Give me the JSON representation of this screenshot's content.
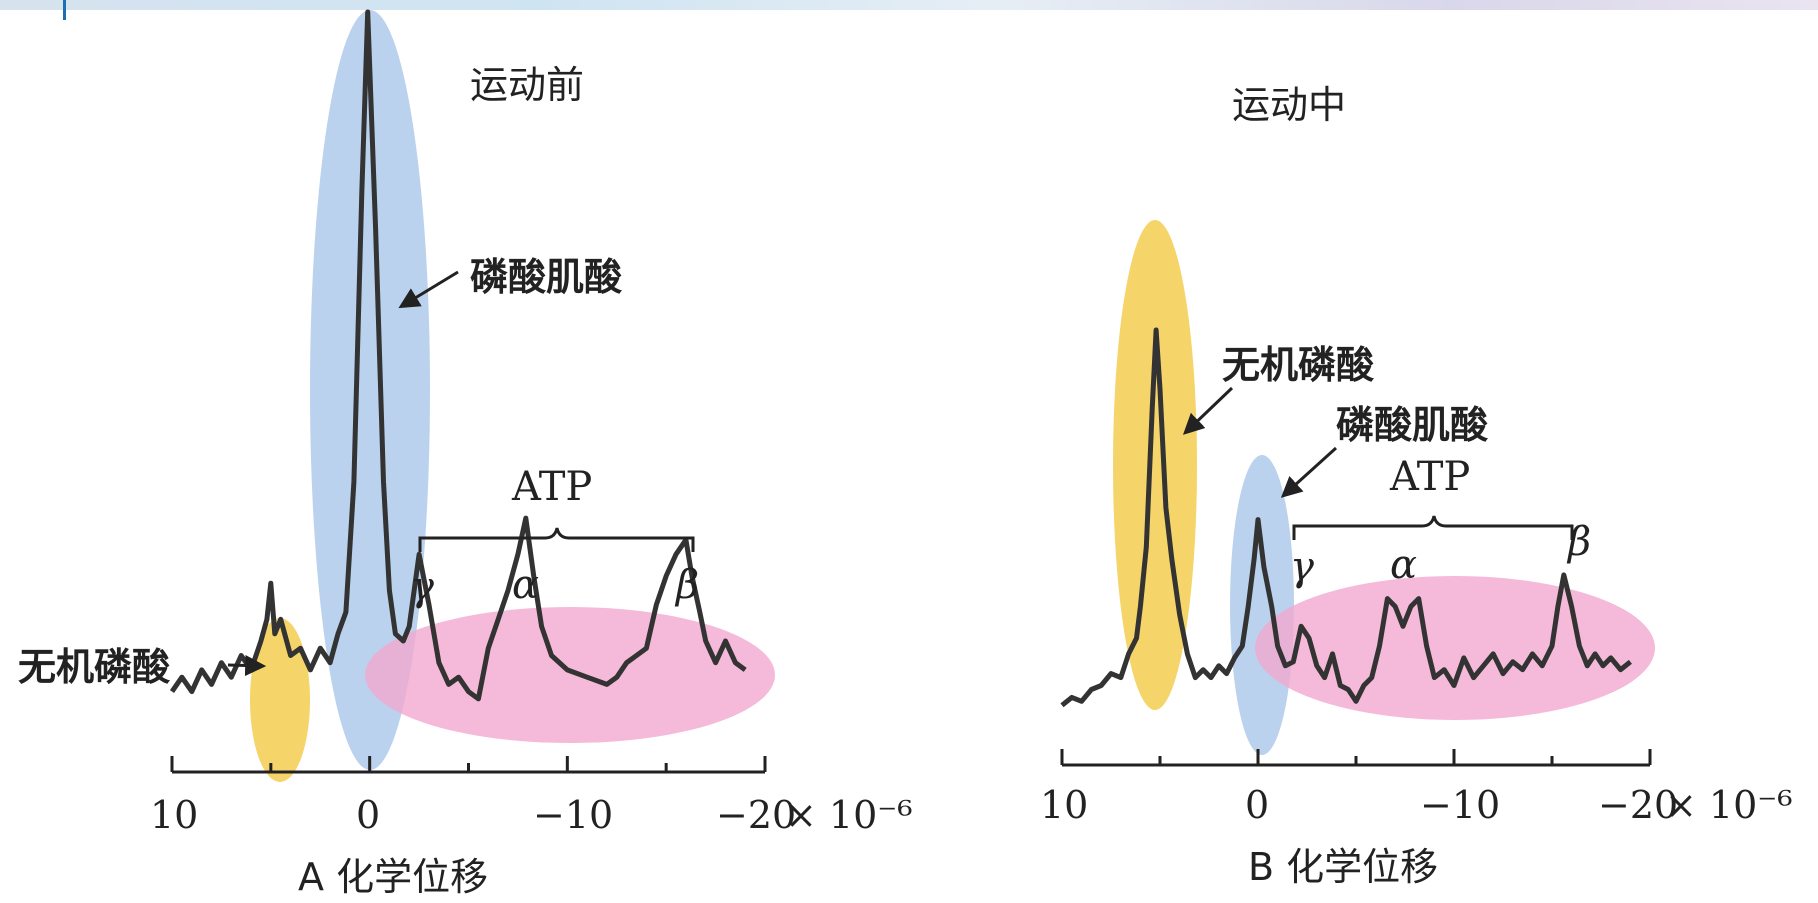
{
  "chart_data": [
    {
      "type": "line",
      "panel": "A",
      "title": "运动前",
      "xlabel": "A 化学位移",
      "x_ticks": [
        "10",
        "0",
        "−10",
        "−20"
      ],
      "x_unit": "× 10⁻⁶",
      "xlim": [
        10,
        -20
      ],
      "x_reversed": true,
      "peak_labels": {
        "inorganic_phosphate": "无机磷酸",
        "phosphocreatine": "磷酸肌酸",
        "atp": "ATP",
        "gamma": "γ",
        "alpha": "α",
        "beta": "β"
      },
      "highlight_colors": {
        "pi": "#f3cd4f",
        "pcr": "#a9c7e8",
        "atp": "#f2a9d0"
      },
      "series": [
        {
          "values": [
            [
              10.0,
              0.06
            ],
            [
              9.5,
              0.08
            ],
            [
              9.0,
              0.06
            ],
            [
              8.5,
              0.09
            ],
            [
              8.0,
              0.07
            ],
            [
              7.5,
              0.1
            ],
            [
              7.0,
              0.08
            ],
            [
              6.5,
              0.11
            ],
            [
              6.0,
              0.09
            ],
            [
              5.5,
              0.13
            ],
            [
              5.2,
              0.16
            ],
            [
              5.0,
              0.21
            ],
            [
              4.8,
              0.14
            ],
            [
              4.5,
              0.16
            ],
            [
              4.0,
              0.11
            ],
            [
              3.5,
              0.12
            ],
            [
              3.0,
              0.09
            ],
            [
              2.5,
              0.12
            ],
            [
              2.0,
              0.1
            ],
            [
              1.6,
              0.14
            ],
            [
              1.2,
              0.17
            ],
            [
              0.8,
              0.35
            ],
            [
              0.4,
              0.75
            ],
            [
              0.1,
              1.0
            ],
            [
              -0.3,
              0.7
            ],
            [
              -0.7,
              0.35
            ],
            [
              -1.0,
              0.2
            ],
            [
              -1.3,
              0.14
            ],
            [
              -1.7,
              0.13
            ],
            [
              -2.0,
              0.15
            ],
            [
              -2.5,
              0.25
            ],
            [
              -3.0,
              0.18
            ],
            [
              -3.5,
              0.1
            ],
            [
              -4.0,
              0.07
            ],
            [
              -4.5,
              0.08
            ],
            [
              -5.0,
              0.06
            ],
            [
              -5.5,
              0.05
            ],
            [
              -6.0,
              0.12
            ],
            [
              -6.5,
              0.16
            ],
            [
              -7.0,
              0.2
            ],
            [
              -7.5,
              0.25
            ],
            [
              -7.9,
              0.3
            ],
            [
              -8.3,
              0.22
            ],
            [
              -8.7,
              0.15
            ],
            [
              -9.2,
              0.11
            ],
            [
              -10.0,
              0.09
            ],
            [
              -11.0,
              0.08
            ],
            [
              -12.0,
              0.07
            ],
            [
              -12.5,
              0.08
            ],
            [
              -13.0,
              0.1
            ],
            [
              -13.5,
              0.11
            ],
            [
              -14.0,
              0.12
            ],
            [
              -14.5,
              0.18
            ],
            [
              -15.0,
              0.22
            ],
            [
              -15.5,
              0.25
            ],
            [
              -16.0,
              0.27
            ],
            [
              -16.3,
              0.22
            ],
            [
              -16.7,
              0.17
            ],
            [
              -17.0,
              0.13
            ],
            [
              -17.5,
              0.1
            ],
            [
              -18.0,
              0.13
            ],
            [
              -18.5,
              0.1
            ],
            [
              -19.0,
              0.09
            ]
          ]
        }
      ]
    },
    {
      "type": "line",
      "panel": "B",
      "title": "运动中",
      "xlabel": "B 化学位移",
      "x_ticks": [
        "10",
        "0",
        "−10",
        "−20"
      ],
      "x_unit": "× 10⁻⁶",
      "xlim": [
        10,
        -20
      ],
      "x_reversed": true,
      "peak_labels": {
        "inorganic_phosphate": "无机磷酸",
        "phosphocreatine": "磷酸肌酸",
        "atp": "ATP",
        "gamma": "γ",
        "alpha": "α",
        "beta": "β"
      },
      "highlight_colors": {
        "pi": "#f3cd4f",
        "pcr": "#a9c7e8",
        "atp": "#f2a9d0"
      },
      "series": [
        {
          "values": [
            [
              10.0,
              0.05
            ],
            [
              9.5,
              0.07
            ],
            [
              9.0,
              0.06
            ],
            [
              8.5,
              0.09
            ],
            [
              8.0,
              0.1
            ],
            [
              7.5,
              0.13
            ],
            [
              7.0,
              0.12
            ],
            [
              6.6,
              0.18
            ],
            [
              6.2,
              0.22
            ],
            [
              6.0,
              0.3
            ],
            [
              5.7,
              0.45
            ],
            [
              5.4,
              0.8
            ],
            [
              5.2,
              1.0
            ],
            [
              5.0,
              0.85
            ],
            [
              4.7,
              0.55
            ],
            [
              4.4,
              0.42
            ],
            [
              4.0,
              0.28
            ],
            [
              3.6,
              0.18
            ],
            [
              3.2,
              0.12
            ],
            [
              2.8,
              0.14
            ],
            [
              2.4,
              0.12
            ],
            [
              2.0,
              0.15
            ],
            [
              1.6,
              0.13
            ],
            [
              1.2,
              0.17
            ],
            [
              0.8,
              0.2
            ],
            [
              0.5,
              0.3
            ],
            [
              0.2,
              0.42
            ],
            [
              0.0,
              0.52
            ],
            [
              -0.3,
              0.4
            ],
            [
              -0.7,
              0.3
            ],
            [
              -1.0,
              0.2
            ],
            [
              -1.4,
              0.15
            ],
            [
              -1.8,
              0.16
            ],
            [
              -2.2,
              0.25
            ],
            [
              -2.6,
              0.22
            ],
            [
              -3.0,
              0.15
            ],
            [
              -3.4,
              0.12
            ],
            [
              -3.8,
              0.18
            ],
            [
              -4.2,
              0.1
            ],
            [
              -4.6,
              0.09
            ],
            [
              -5.0,
              0.06
            ],
            [
              -5.4,
              0.1
            ],
            [
              -5.8,
              0.12
            ],
            [
              -6.2,
              0.2
            ],
            [
              -6.6,
              0.32
            ],
            [
              -7.0,
              0.3
            ],
            [
              -7.4,
              0.25
            ],
            [
              -7.8,
              0.3
            ],
            [
              -8.2,
              0.32
            ],
            [
              -8.6,
              0.2
            ],
            [
              -9.0,
              0.12
            ],
            [
              -9.5,
              0.14
            ],
            [
              -10.0,
              0.1
            ],
            [
              -10.5,
              0.17
            ],
            [
              -11.0,
              0.12
            ],
            [
              -11.5,
              0.15
            ],
            [
              -12.0,
              0.18
            ],
            [
              -12.5,
              0.13
            ],
            [
              -13.0,
              0.16
            ],
            [
              -13.5,
              0.14
            ],
            [
              -14.0,
              0.18
            ],
            [
              -14.5,
              0.15
            ],
            [
              -15.0,
              0.2
            ],
            [
              -15.3,
              0.3
            ],
            [
              -15.6,
              0.38
            ],
            [
              -16.0,
              0.3
            ],
            [
              -16.4,
              0.2
            ],
            [
              -16.8,
              0.15
            ],
            [
              -17.2,
              0.18
            ],
            [
              -17.6,
              0.15
            ],
            [
              -18.0,
              0.17
            ],
            [
              -18.5,
              0.14
            ],
            [
              -19.0,
              0.16
            ]
          ]
        }
      ]
    }
  ]
}
